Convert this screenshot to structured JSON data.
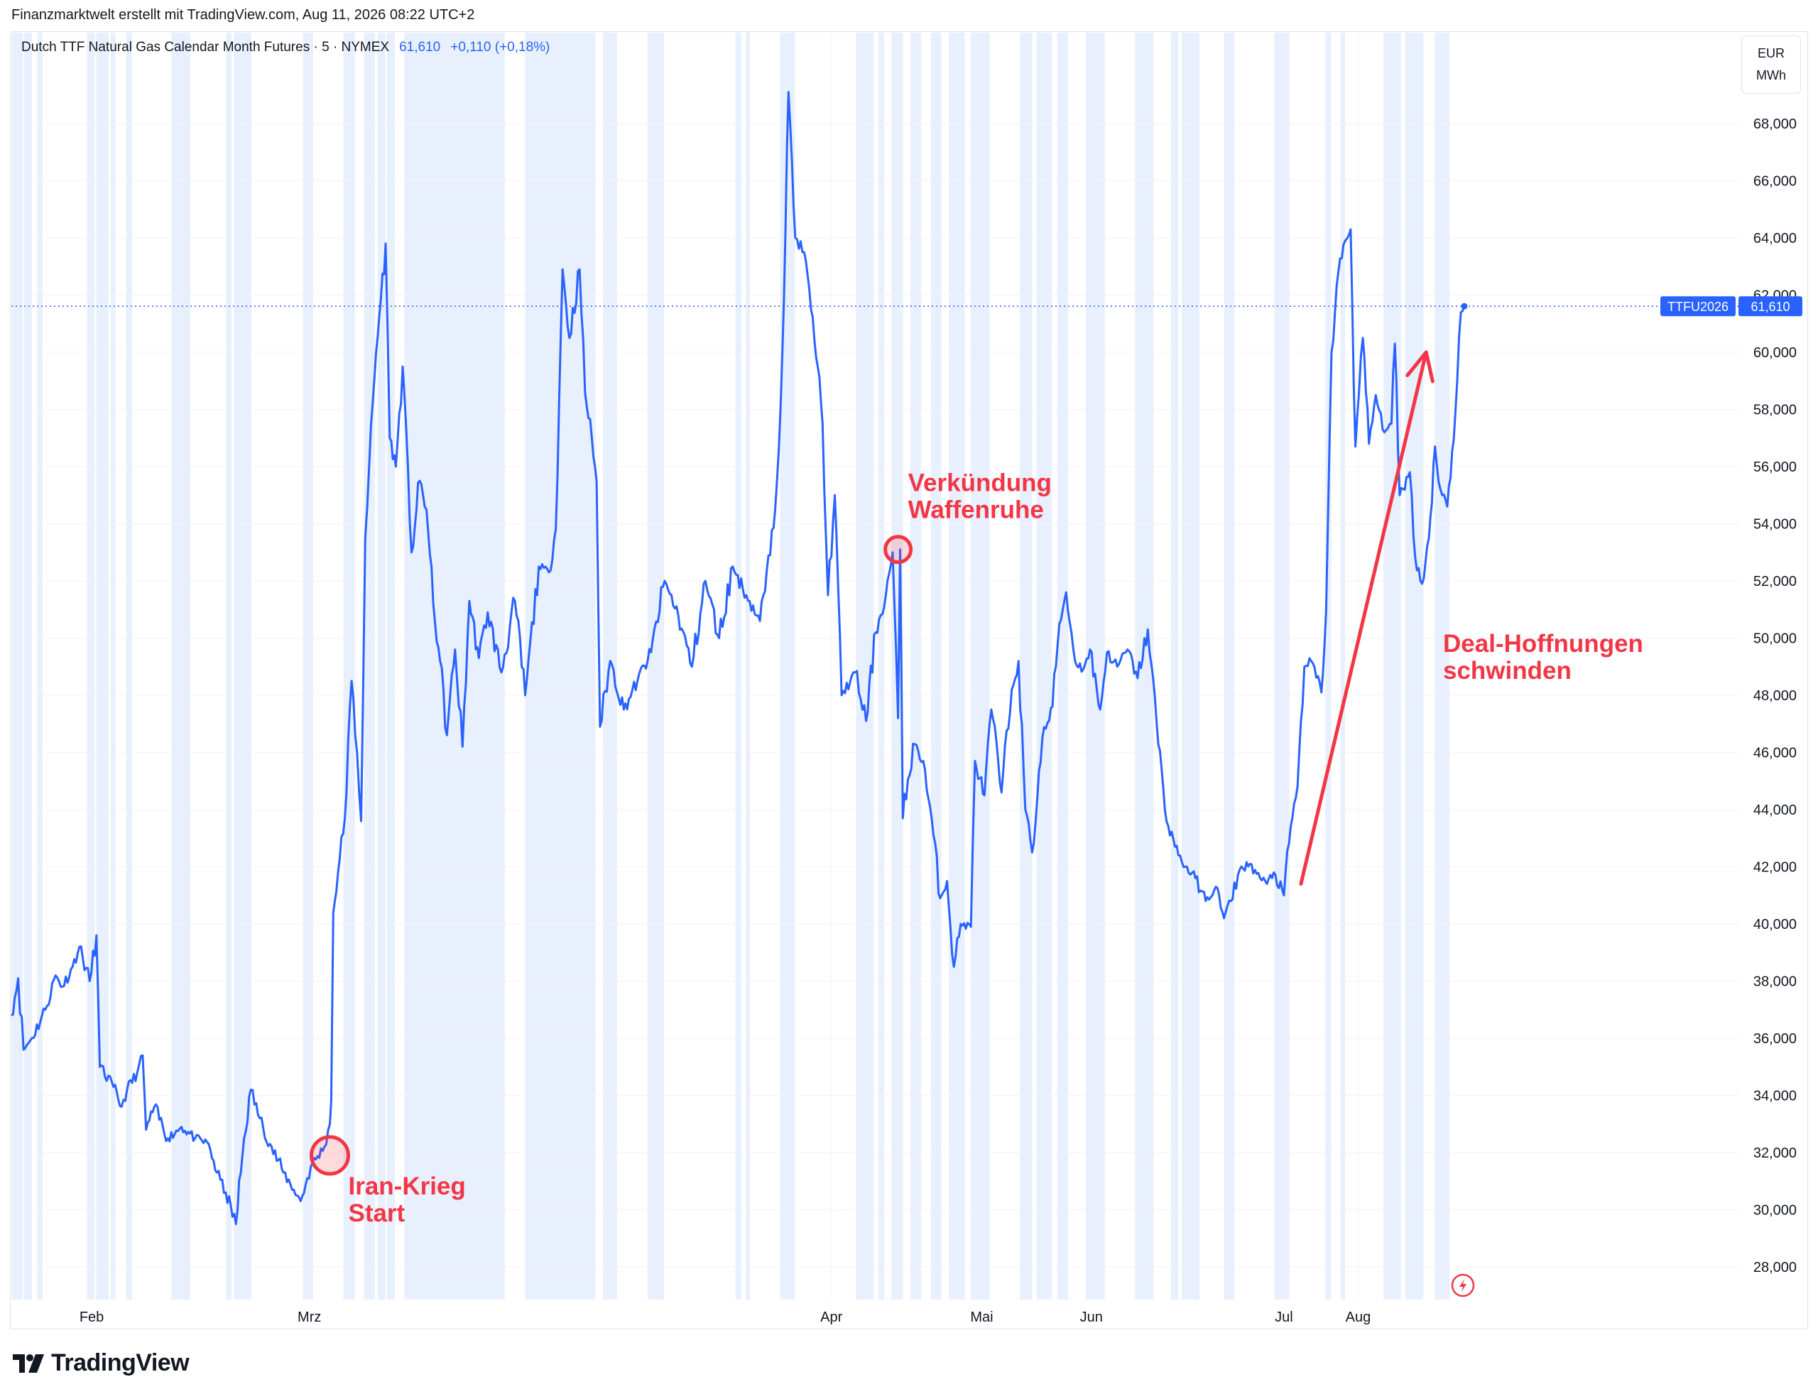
{
  "attribution": "Finanzmarktwelt erstellt mit TradingView.com, Aug 11, 2026 08:22 UTC+2",
  "header": {
    "symbol_name": "Dutch TTF Natural Gas Calendar Month Futures · 5 · NYMEX",
    "last_price": "61,610",
    "change": "+0,110 (+0,18%)"
  },
  "units": {
    "currency": "EUR",
    "unit": "MWh"
  },
  "price_badge": {
    "ticker": "TTFU2026",
    "value": "61,610"
  },
  "brand": {
    "name": "TradingView"
  },
  "colors": {
    "line": "#2962ff",
    "annotation": "#f23645",
    "session_shade": "#e8effd",
    "badge": "#2962ff"
  },
  "icons": {
    "logo": "tradingview-logo-icon",
    "flash": "lightning-flash-icon"
  },
  "chart_data": {
    "type": "line",
    "title": "Dutch TTF Natural Gas Calendar Month Futures · 5 · NYMEX",
    "xlabel": "",
    "ylabel": "",
    "ylim": [
      27000,
      69500
    ],
    "y_ticks": [
      28000,
      30000,
      32000,
      34000,
      36000,
      38000,
      40000,
      42000,
      44000,
      46000,
      48000,
      50000,
      52000,
      54000,
      56000,
      58000,
      60000,
      62000,
      64000,
      66000,
      68000
    ],
    "y_tick_labels": [
      "28,000",
      "30,000",
      "32,000",
      "34,000",
      "36,000",
      "38,000",
      "40,000",
      "42,000",
      "44,000",
      "46,000",
      "48,000",
      "50,000",
      "52,000",
      "54,000",
      "56,000",
      "58,000",
      "60,000",
      "62,000",
      "64,000",
      "66,000",
      "68,000"
    ],
    "x_ticks": [
      {
        "label": "Feb",
        "t": 11.8
      },
      {
        "label": "Mrz",
        "t": 43.8
      },
      {
        "label": "Apr",
        "t": 120.5
      },
      {
        "label": "Mai",
        "t": 142.6
      },
      {
        "label": "Jun",
        "t": 158.7
      },
      {
        "label": "Jul",
        "t": 187.0
      },
      {
        "label": "Aug",
        "t": 197.9
      }
    ],
    "t_range": [
      0,
      254
    ],
    "last_value": 61610,
    "grid": true,
    "series": [
      {
        "values": [
          [
            0,
            36800
          ],
          [
            1.0,
            38100
          ],
          [
            1.8,
            35600
          ],
          [
            3.0,
            36000
          ],
          [
            5.0,
            37000
          ],
          [
            6.5,
            38200
          ],
          [
            7.5,
            37800
          ],
          [
            9.0,
            38500
          ],
          [
            10.0,
            39200
          ],
          [
            11.5,
            38000
          ],
          [
            12.5,
            39600
          ],
          [
            13.0,
            35000
          ],
          [
            15.0,
            34300
          ],
          [
            16.2,
            33600
          ],
          [
            17.0,
            34200
          ],
          [
            18.5,
            34800
          ],
          [
            19.3,
            35400
          ],
          [
            19.8,
            32800
          ],
          [
            21.0,
            33600
          ],
          [
            23.0,
            32500
          ],
          [
            25.0,
            32900
          ],
          [
            27.0,
            32500
          ],
          [
            29.0,
            32300
          ],
          [
            30.2,
            31300
          ],
          [
            31.5,
            30600
          ],
          [
            33.0,
            29500
          ],
          [
            34.2,
            32500
          ],
          [
            35.2,
            34200
          ],
          [
            36.5,
            33200
          ],
          [
            38.0,
            32300
          ],
          [
            40.0,
            31300
          ],
          [
            41.5,
            30700
          ],
          [
            42.5,
            30300
          ],
          [
            44.0,
            31500
          ],
          [
            46.0,
            32200
          ],
          [
            46.8,
            33000
          ],
          [
            47.0,
            33800
          ],
          [
            47.3,
            40400
          ],
          [
            48.0,
            41800
          ],
          [
            49.0,
            43700
          ],
          [
            50.0,
            48500
          ],
          [
            50.8,
            46000
          ],
          [
            51.4,
            43600
          ],
          [
            52.0,
            53500
          ],
          [
            52.6,
            56100
          ],
          [
            53.6,
            60000
          ],
          [
            55.0,
            63800
          ],
          [
            55.6,
            57000
          ],
          [
            56.5,
            56000
          ],
          [
            57.5,
            59500
          ],
          [
            58.8,
            53000
          ],
          [
            60.0,
            55500
          ],
          [
            61.0,
            54500
          ],
          [
            62.0,
            51200
          ],
          [
            63.0,
            49200
          ],
          [
            64.0,
            46600
          ],
          [
            65.2,
            49600
          ],
          [
            66.3,
            46200
          ],
          [
            67.3,
            51300
          ],
          [
            68.7,
            49300
          ],
          [
            70.0,
            50900
          ],
          [
            72.0,
            48800
          ],
          [
            74.0,
            51300
          ],
          [
            75.5,
            48000
          ],
          [
            77.5,
            52500
          ],
          [
            79.0,
            52300
          ],
          [
            80.0,
            53800
          ],
          [
            81.0,
            62900
          ],
          [
            82.0,
            60500
          ],
          [
            83.5,
            62900
          ],
          [
            84.3,
            58600
          ],
          [
            85.3,
            57000
          ],
          [
            86.0,
            55500
          ],
          [
            86.5,
            46900
          ],
          [
            88.0,
            49200
          ],
          [
            90.0,
            47500
          ],
          [
            92.0,
            48500
          ],
          [
            94.0,
            49500
          ],
          [
            96.0,
            52000
          ],
          [
            98.0,
            50800
          ],
          [
            100.0,
            49000
          ],
          [
            102.0,
            52000
          ],
          [
            104.0,
            50000
          ],
          [
            106.0,
            52500
          ],
          [
            108.0,
            51500
          ],
          [
            110.0,
            50600
          ],
          [
            111.5,
            52900
          ],
          [
            112.5,
            55500
          ],
          [
            113.3,
            60000
          ],
          [
            114.2,
            69100
          ],
          [
            115.2,
            64000
          ],
          [
            116.5,
            63500
          ],
          [
            117.5,
            61500
          ],
          [
            118.5,
            59500
          ],
          [
            119.2,
            57500
          ],
          [
            120.0,
            51500
          ],
          [
            121.0,
            55000
          ],
          [
            122.0,
            48000
          ],
          [
            124.0,
            48800
          ],
          [
            125.6,
            47100
          ],
          [
            127.0,
            50200
          ],
          [
            128.5,
            51500
          ],
          [
            129.5,
            53000
          ],
          [
            130.3,
            47200
          ],
          [
            130.6,
            53100
          ],
          [
            131.0,
            43700
          ],
          [
            132.5,
            46300
          ],
          [
            134.0,
            45700
          ],
          [
            135.5,
            43100
          ],
          [
            136.5,
            40900
          ],
          [
            137.5,
            41500
          ],
          [
            138.5,
            38500
          ],
          [
            139.5,
            40000
          ],
          [
            141.0,
            39900
          ],
          [
            141.6,
            45700
          ],
          [
            143.0,
            44500
          ],
          [
            144.0,
            47500
          ],
          [
            145.5,
            44600
          ],
          [
            147.0,
            48200
          ],
          [
            148.0,
            49200
          ],
          [
            149.0,
            44000
          ],
          [
            150.0,
            42500
          ],
          [
            151.5,
            46500
          ],
          [
            153.0,
            47600
          ],
          [
            154.0,
            50500
          ],
          [
            155.0,
            51600
          ],
          [
            156.3,
            49200
          ],
          [
            157.5,
            48900
          ],
          [
            158.5,
            49600
          ],
          [
            160.0,
            47500
          ],
          [
            161.0,
            49500
          ],
          [
            162.5,
            49000
          ],
          [
            164.0,
            49600
          ],
          [
            165.5,
            48600
          ],
          [
            167.0,
            50300
          ],
          [
            168.3,
            47000
          ],
          [
            169.5,
            44000
          ],
          [
            171.0,
            42700
          ],
          [
            172.5,
            42000
          ],
          [
            174.0,
            41600
          ],
          [
            175.5,
            40800
          ],
          [
            177.0,
            41300
          ],
          [
            178.2,
            40200
          ],
          [
            179.2,
            40800
          ],
          [
            180.5,
            41900
          ],
          [
            182.0,
            42100
          ],
          [
            183.5,
            41600
          ],
          [
            184.5,
            41400
          ],
          [
            185.5,
            41800
          ],
          [
            187.0,
            41000
          ],
          [
            188.0,
            43400
          ],
          [
            189.0,
            44800
          ],
          [
            190.0,
            49000
          ],
          [
            191.0,
            49200
          ],
          [
            192.5,
            48100
          ],
          [
            193.2,
            51000
          ],
          [
            194.0,
            60000
          ],
          [
            195.0,
            62800
          ],
          [
            196.0,
            63900
          ],
          [
            196.8,
            64300
          ],
          [
            197.5,
            56700
          ],
          [
            198.6,
            60500
          ],
          [
            199.5,
            56800
          ],
          [
            200.5,
            58500
          ],
          [
            201.5,
            57300
          ],
          [
            202.8,
            57500
          ],
          [
            203.3,
            60300
          ],
          [
            204.0,
            55000
          ],
          [
            205.5,
            55800
          ],
          [
            206.3,
            52800
          ],
          [
            207.3,
            51900
          ],
          [
            208.3,
            53500
          ],
          [
            209.2,
            56700
          ],
          [
            210.0,
            55200
          ],
          [
            211.0,
            54600
          ],
          [
            212.2,
            57900
          ],
          [
            213.0,
            61400
          ],
          [
            213.5,
            61610
          ]
        ]
      }
    ],
    "annotations": [
      {
        "lines": [
          "Iran-Krieg",
          "Start"
        ],
        "marker_t": 46.8,
        "marker_v": 31900
      },
      {
        "lines": [
          "Verkündung",
          "Waffenruhe"
        ],
        "marker_t": 130.3,
        "marker_v": 53100
      },
      {
        "lines": [
          "Deal-Hoffnungen",
          "schwinden"
        ],
        "arrow_from": [
          189.5,
          41400
        ],
        "arrow_to": [
          207.9,
          60000
        ]
      }
    ]
  }
}
